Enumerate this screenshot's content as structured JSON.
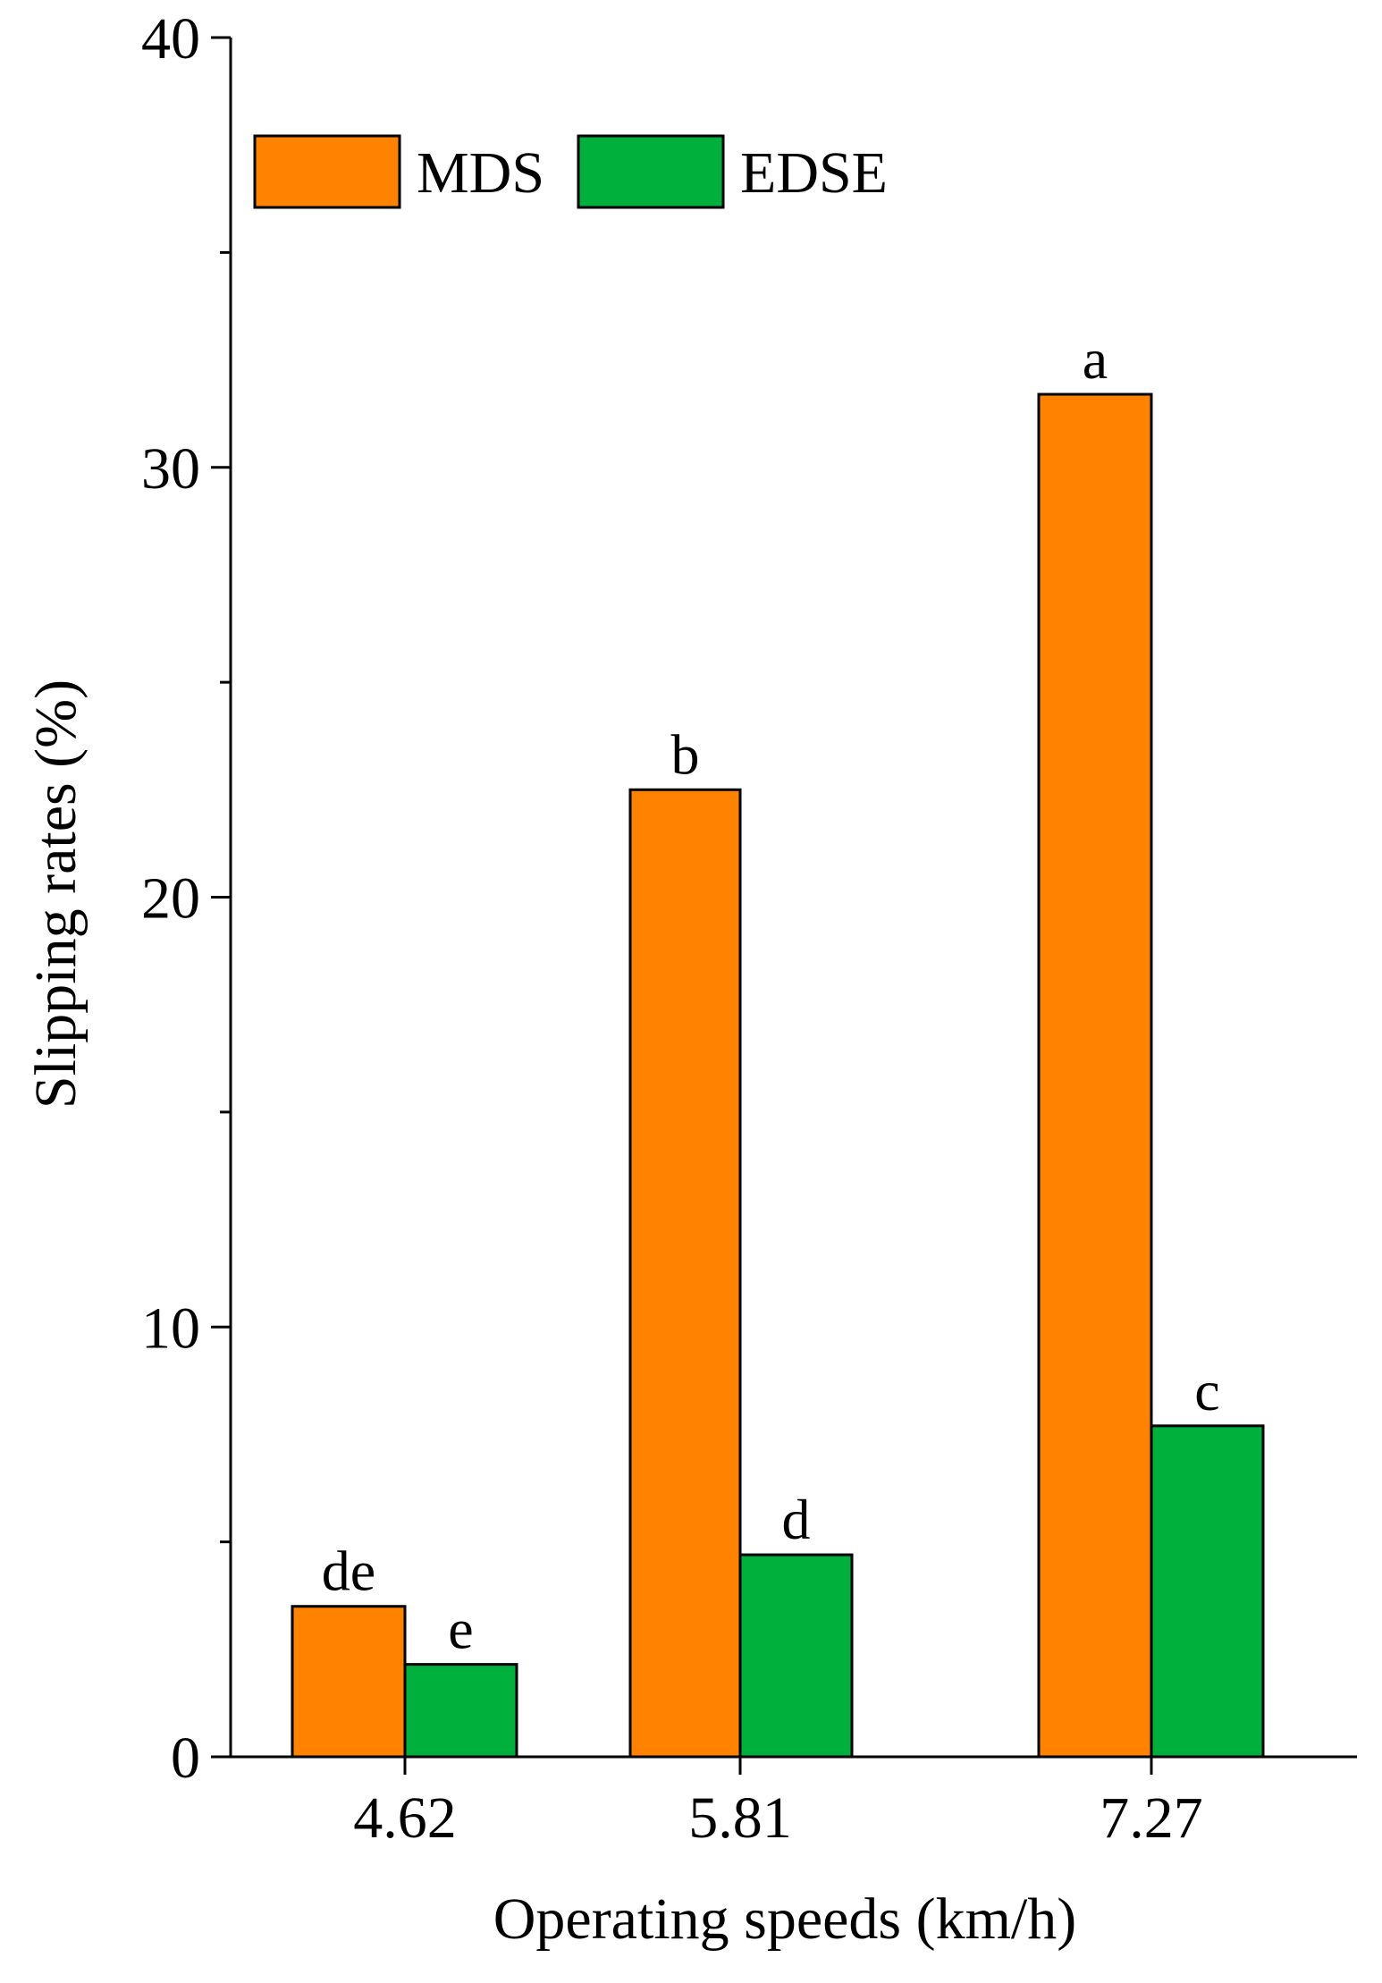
{
  "chart_data": {
    "type": "bar",
    "categories": [
      "4.62",
      "5.81",
      "7.27"
    ],
    "series": [
      {
        "name": "MDS",
        "color": "#ff8200",
        "values": [
          3.5,
          22.5,
          31.7
        ],
        "letters": [
          "de",
          "b",
          "a"
        ]
      },
      {
        "name": "EDSE",
        "color": "#00b03c",
        "values": [
          2.15,
          4.7,
          7.7
        ],
        "letters": [
          "e",
          "d",
          "c"
        ]
      }
    ],
    "xlabel": "Operating speeds (km/h)",
    "ylabel": "Slipping rates (%)",
    "ylim": [
      0,
      40
    ],
    "yticks": [
      0,
      10,
      20,
      30,
      40
    ],
    "y_minor_step": 5,
    "grid": false,
    "legend_position": "top-left"
  }
}
